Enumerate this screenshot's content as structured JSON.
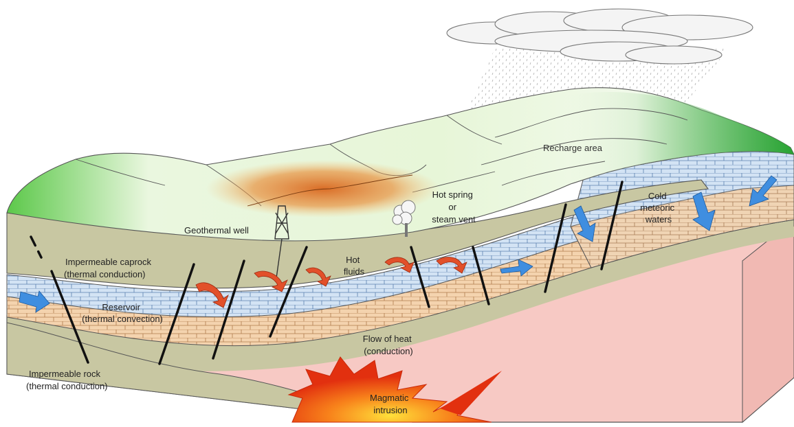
{
  "labels": {
    "recharge_area": "Recharge area",
    "hot_spring_l1": "Hot spring",
    "hot_spring_l2": "or",
    "hot_spring_l3": "steam vent",
    "geothermal_well": "Geothermal well",
    "cold_l1": "Cold",
    "cold_l2": "meteoric",
    "cold_l3": "waters",
    "caprock_l1": "Impermeable caprock",
    "caprock_l2": "(thermal conduction)",
    "hot_fluids_l1": "Hot",
    "hot_fluids_l2": "fluids",
    "reservoir_l1": "Reservoir",
    "reservoir_l2": "(thermal convection)",
    "heat_flow_l1": "Flow of heat",
    "heat_flow_l2": "(conduction)",
    "rock_l1": "Impermeable rock",
    "rock_l2": "(thermal conduction)",
    "magma_l1": "Magmatic",
    "magma_l2": "intrusion"
  },
  "colors": {
    "hot_arrow": "#e2502a",
    "cold_arrow": "#3f8ee0",
    "reservoir_blue": "#cfe0f2",
    "reservoir_tan": "#f3d2ad",
    "caprock": "#c8c7a2",
    "basement": "#f7c9c4",
    "land_green": "#5cc84a",
    "magma": "#f04a1a"
  }
}
